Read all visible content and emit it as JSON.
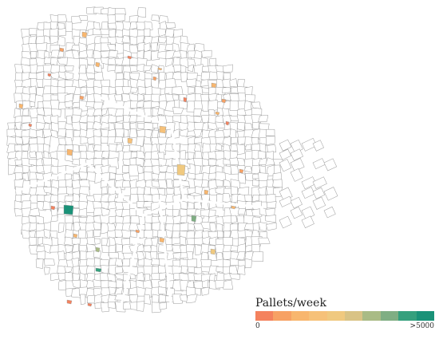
{
  "legend": {
    "title": "Pallets/week",
    "min_label": "0",
    "max_label": ">5000",
    "scale_colors": [
      "#f4825e",
      "#f7a164",
      "#f8b66e",
      "#f6c179",
      "#f0c97f",
      "#d9c385",
      "#a9bb85",
      "#7fae83",
      "#35a07d",
      "#1a9278"
    ]
  },
  "colors": {
    "block_stroke": "#9a9a9a",
    "block_fill": "#ffffff"
  }
}
